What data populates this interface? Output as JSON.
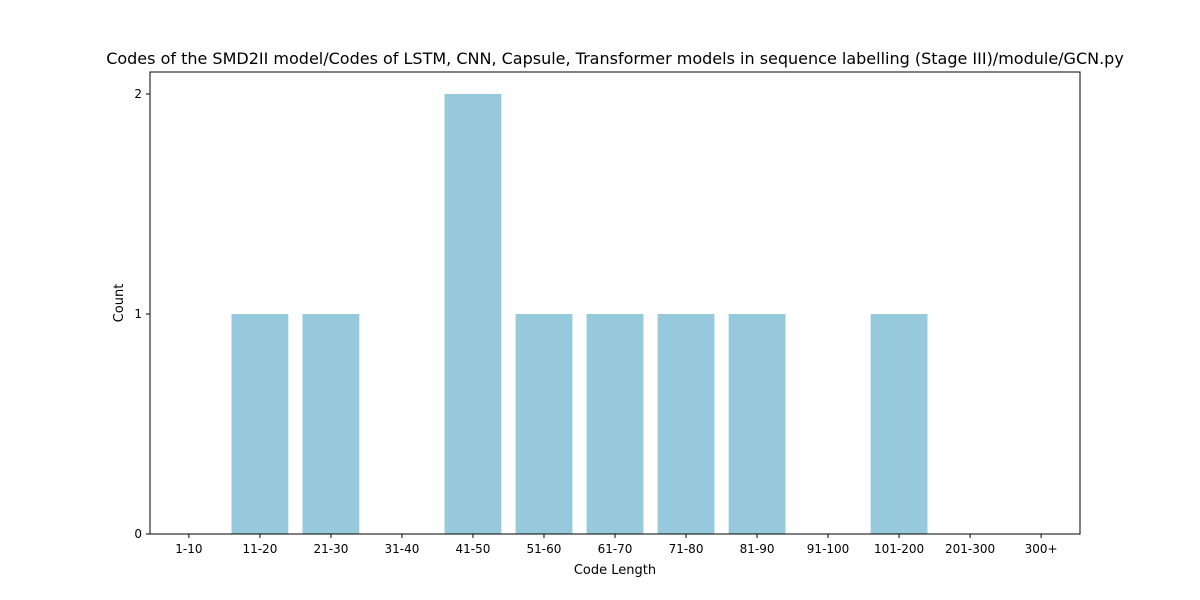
{
  "chart_data": {
    "type": "bar",
    "title": "Codes of the SMD2II model/Codes of LSTM, CNN, Capsule, Transformer models in sequence labelling (Stage III)/module/GCN.py",
    "xlabel": "Code Length",
    "ylabel": "Count",
    "categories": [
      "1-10",
      "11-20",
      "21-30",
      "31-40",
      "41-50",
      "51-60",
      "61-70",
      "71-80",
      "81-90",
      "91-100",
      "101-200",
      "201-300",
      "300+"
    ],
    "values": [
      0,
      1,
      1,
      0,
      2,
      1,
      1,
      1,
      1,
      0,
      1,
      0,
      0
    ],
    "yticks": [
      0,
      1,
      2
    ],
    "ylim": [
      0,
      2.1
    ],
    "grid": false,
    "bar_color": "#96c9dc"
  }
}
